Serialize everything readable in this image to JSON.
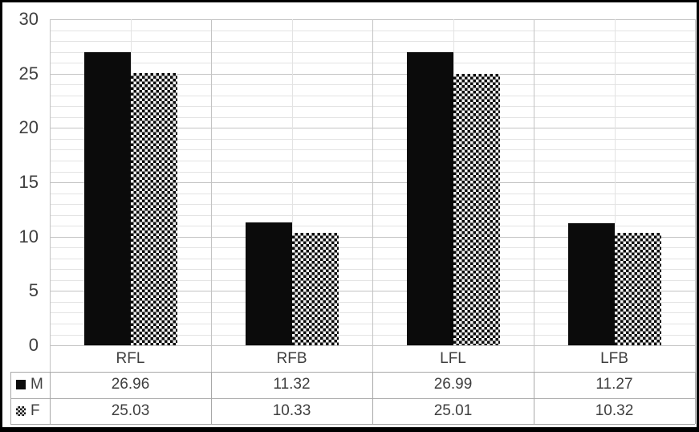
{
  "figure": {
    "background": "#ffffff",
    "frame_color": "#000000"
  },
  "chart_data": {
    "type": "bar",
    "title": "",
    "xlabel": "",
    "ylabel": "",
    "categories": [
      "RFL",
      "RFB",
      "LFL",
      "LFB"
    ],
    "series": [
      {
        "name": "M",
        "pattern": "solid-black",
        "values": [
          26.96,
          11.32,
          26.99,
          11.27
        ]
      },
      {
        "name": "F",
        "pattern": "checkerboard",
        "values": [
          25.03,
          10.33,
          25.01,
          10.32
        ]
      }
    ],
    "ylim": [
      0,
      30
    ],
    "y_major_ticks": [
      0,
      5,
      10,
      15,
      20,
      25,
      30
    ],
    "y_minor_unit": 1,
    "grid": "horizontal-minor-and-major, vertical-category-boundaries-and-midpoints",
    "legend_position": "data-table-left-column",
    "data_table_shown": true,
    "colors": {
      "bar_solid": "#0b0b0b",
      "pattern_fg": "#0b0b0b",
      "pattern_bg": "#f2f2f2",
      "grid_major": "#c3c3c3",
      "grid_minor": "#e3e3e3",
      "table_border": "#a8a8a8",
      "text": "#3f3f3f"
    }
  }
}
